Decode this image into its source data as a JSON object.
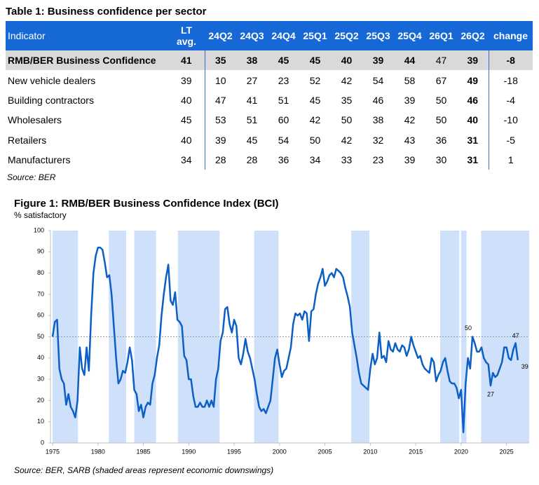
{
  "table": {
    "title": "Table 1: Business confidence per sector",
    "header": [
      "Indicator",
      "LT avg.",
      "24Q2",
      "24Q3",
      "24Q4",
      "25Q1",
      "25Q2",
      "25Q3",
      "25Q4",
      "26Q1",
      "26Q2",
      "change"
    ],
    "rows": [
      [
        "RMB/BER Business Confidence",
        41,
        35,
        38,
        45,
        45,
        40,
        39,
        44,
        47,
        39,
        -8
      ],
      [
        "New vehicle dealers",
        39,
        10,
        27,
        23,
        52,
        42,
        54,
        58,
        67,
        49,
        -18
      ],
      [
        "Building contractors",
        40,
        47,
        41,
        51,
        45,
        35,
        46,
        39,
        50,
        46,
        -4
      ],
      [
        "Wholesalers",
        45,
        53,
        51,
        60,
        42,
        50,
        38,
        42,
        50,
        40,
        -10
      ],
      [
        "Retailers",
        40,
        39,
        45,
        54,
        50,
        42,
        32,
        43,
        36,
        31,
        -5
      ],
      [
        "Manufacturers",
        34,
        28,
        28,
        36,
        34,
        33,
        23,
        39,
        30,
        31,
        1
      ]
    ],
    "source": "Source: BER"
  },
  "figure": {
    "title": "Figure 1: RMB/BER Business Confidence Index (BCI)",
    "source": "Source: BER, SARB (shaded areas represent economic downswings)",
    "chart_data": {
      "type": "line",
      "ylabel": "% satisfactory",
      "x": [
        1975,
        1975.25,
        1975.5,
        1975.75,
        1976,
        1976.25,
        1976.5,
        1976.75,
        1977,
        1977.25,
        1977.5,
        1977.75,
        1978,
        1978.25,
        1978.5,
        1978.75,
        1979,
        1979.25,
        1979.5,
        1979.75,
        1980,
        1980.25,
        1980.5,
        1980.75,
        1981,
        1981.25,
        1981.5,
        1981.75,
        1982,
        1982.25,
        1982.5,
        1982.75,
        1983,
        1983.25,
        1983.5,
        1983.75,
        1984,
        1984.25,
        1984.5,
        1984.75,
        1985,
        1985.25,
        1985.5,
        1985.75,
        1986,
        1986.25,
        1986.5,
        1986.75,
        1987,
        1987.25,
        1987.5,
        1987.75,
        1988,
        1988.25,
        1988.5,
        1988.75,
        1989,
        1989.25,
        1989.5,
        1989.75,
        1990,
        1990.25,
        1990.5,
        1990.75,
        1991,
        1991.25,
        1991.5,
        1991.75,
        1992,
        1992.25,
        1992.5,
        1992.75,
        1993,
        1993.25,
        1993.5,
        1993.75,
        1994,
        1994.25,
        1994.5,
        1994.75,
        1995,
        1995.25,
        1995.5,
        1995.75,
        1996,
        1996.25,
        1996.5,
        1996.75,
        1997,
        1997.25,
        1997.5,
        1997.75,
        1998,
        1998.25,
        1998.5,
        1998.75,
        1999,
        1999.25,
        1999.5,
        1999.75,
        2000,
        2000.25,
        2000.5,
        2000.75,
        2001,
        2001.25,
        2001.5,
        2001.75,
        2002,
        2002.25,
        2002.5,
        2002.75,
        2003,
        2003.25,
        2003.5,
        2003.75,
        2004,
        2004.25,
        2004.5,
        2004.75,
        2005,
        2005.25,
        2005.5,
        2005.75,
        2006,
        2006.25,
        2006.5,
        2006.75,
        2007,
        2007.25,
        2007.5,
        2007.75,
        2008,
        2008.25,
        2008.5,
        2008.75,
        2009,
        2009.25,
        2009.5,
        2009.75,
        2010,
        2010.25,
        2010.5,
        2010.75,
        2011,
        2011.25,
        2011.5,
        2011.75,
        2012,
        2012.25,
        2012.5,
        2012.75,
        2013,
        2013.25,
        2013.5,
        2013.75,
        2014,
        2014.25,
        2014.5,
        2014.75,
        2015,
        2015.25,
        2015.5,
        2015.75,
        2016,
        2016.25,
        2016.5,
        2016.75,
        2017,
        2017.25,
        2017.5,
        2017.75,
        2018,
        2018.25,
        2018.5,
        2018.75,
        2019,
        2019.25,
        2019.5,
        2019.75,
        2020,
        2020.25,
        2020.5,
        2020.75,
        2021,
        2021.25,
        2021.5,
        2021.75,
        2022,
        2022.25,
        2022.5,
        2022.75,
        2023,
        2023.25,
        2023.5,
        2023.75,
        2024,
        2024.25,
        2024.5,
        2024.75,
        2025,
        2025.25,
        2025.5,
        2025.75,
        2026,
        2026.25
      ],
      "series": [
        {
          "color": "#0b5fc7",
          "values": [
            50,
            57,
            58,
            35,
            30,
            28,
            18,
            23,
            17,
            15,
            12,
            20,
            45,
            35,
            32,
            45,
            34,
            60,
            80,
            88,
            92,
            92,
            91,
            85,
            78,
            79,
            70,
            55,
            40,
            28,
            30,
            34,
            33,
            38,
            45,
            39,
            25,
            23,
            15,
            18,
            12,
            17,
            19,
            18,
            28,
            32,
            40,
            46,
            60,
            70,
            78,
            84,
            67,
            65,
            71,
            58,
            57,
            55,
            41,
            39,
            30,
            30,
            22,
            17,
            17,
            19,
            17,
            17,
            20,
            17,
            20,
            17,
            30,
            35,
            48,
            52,
            63,
            64,
            56,
            52,
            58,
            55,
            40,
            37,
            42,
            49,
            43,
            40,
            35,
            30,
            23,
            17,
            15,
            16,
            14,
            17,
            20,
            30,
            40,
            44,
            37,
            31,
            34,
            35,
            40,
            45,
            56,
            61,
            60,
            61,
            58,
            62,
            61,
            48,
            62,
            63,
            70,
            75,
            78,
            82,
            74,
            76,
            79,
            80,
            78,
            82,
            81,
            80,
            78,
            73,
            69,
            64,
            52,
            46,
            40,
            33,
            28,
            27,
            26,
            25,
            35,
            42,
            37,
            40,
            52,
            40,
            41,
            38,
            48,
            44,
            43,
            47,
            44,
            43,
            46,
            45,
            41,
            44,
            50,
            46,
            43,
            40,
            41,
            37,
            35,
            34,
            33,
            40,
            38,
            29,
            32,
            34,
            38,
            40,
            34,
            29,
            28,
            28,
            26,
            21,
            25,
            5,
            28,
            40,
            35,
            50,
            47,
            43,
            43,
            45,
            40,
            38,
            37,
            27,
            33,
            31,
            32,
            35,
            38,
            45,
            45,
            40,
            39,
            44,
            47,
            39
          ]
        }
      ],
      "xlim": [
        1975,
        2027.5
      ],
      "xticks": [
        1975,
        1980,
        1985,
        1990,
        1995,
        2000,
        2005,
        2010,
        2015,
        2020,
        2025
      ],
      "ylim": [
        0,
        100
      ],
      "yticks": [
        0,
        10,
        20,
        30,
        40,
        50,
        60,
        70,
        80,
        90,
        100
      ],
      "reference_line": 50,
      "shaded_ranges": [
        [
          1975,
          1977.8
        ],
        [
          1981.2,
          1983.1
        ],
        [
          1984,
          1986.4
        ],
        [
          1988.8,
          1993.4
        ],
        [
          1997.2,
          1999.9
        ],
        [
          2007.9,
          2009.9
        ],
        [
          2017.7,
          2019.8
        ],
        [
          2020,
          2020.6
        ],
        [
          2022.2,
          2027.5
        ]
      ],
      "shade_color": "#cfe1fa",
      "annotations": [
        {
          "x": 2021.25,
          "value": 50
        },
        {
          "x": 2023.25,
          "value": 27
        },
        {
          "x": 2026,
          "value": 47
        },
        {
          "x": 2026.25,
          "value": 39
        }
      ]
    }
  }
}
